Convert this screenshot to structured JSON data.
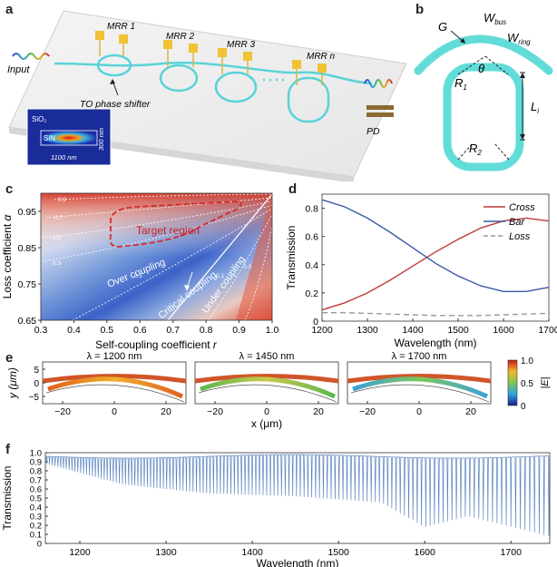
{
  "panel_labels": {
    "a": "a",
    "b": "b",
    "c": "c",
    "d": "d",
    "e": "e",
    "f": "f"
  },
  "panel_a": {
    "mrr_labels": [
      "MRR 1",
      "MRR 2",
      "MRR 3",
      "MRR n"
    ],
    "input_label": "Input",
    "shifter_label": "TO phase shifter",
    "pd_label": "PD",
    "inset": {
      "material": "SiO₂",
      "core": "SiN",
      "width": "1100 nm",
      "height": "300 nm"
    }
  },
  "panel_b": {
    "labels": {
      "G": "G",
      "W_bus": "W",
      "W_bus_sub": "bus",
      "W_ring": "W",
      "W_ring_sub": "ring",
      "theta": "θ",
      "R1": "R",
      "R1_sub": "1",
      "R2": "R",
      "R2_sub": "2",
      "Li": "L",
      "Li_sub": "i"
    }
  },
  "panel_c": {
    "xlabel": "Self-coupling coefficient ",
    "xlabel_var": "r",
    "ylabel": "Loss coefficient ",
    "ylabel_var": "α",
    "xticks": [
      "0.3",
      "0.4",
      "0.5",
      "0.6",
      "0.7",
      "0.8",
      "0.9",
      "1.0"
    ],
    "yticks": [
      "0.65",
      "0.75",
      "0.85",
      "0.95"
    ],
    "contour_labels": [
      "0.9",
      "0.7",
      "0.5",
      "0.3",
      "0.1",
      "0.1",
      "0.3"
    ],
    "target_region": "Target region",
    "over": "Over coupling",
    "critical": "Critical coupling",
    "under": "Under coupling"
  },
  "chart_data": [
    {
      "type": "line",
      "panel": "d",
      "xlabel": "Wavelength (nm)",
      "ylabel": "Transmission",
      "xlim": [
        1200,
        1700
      ],
      "ylim": [
        0,
        0.9
      ],
      "xticks": [
        "1200",
        "1300",
        "1400",
        "1500",
        "1600",
        "1700"
      ],
      "yticks": [
        "0",
        "0.2",
        "0.4",
        "0.6",
        "0.8"
      ],
      "x": [
        1200,
        1250,
        1300,
        1350,
        1400,
        1450,
        1500,
        1550,
        1600,
        1650,
        1700
      ],
      "series": [
        {
          "name": "Cross",
          "color": "#c0383a",
          "dash": false,
          "values": [
            0.08,
            0.13,
            0.2,
            0.29,
            0.39,
            0.49,
            0.58,
            0.66,
            0.71,
            0.73,
            0.71
          ]
        },
        {
          "name": "Bar",
          "color": "#3a57a7",
          "dash": false,
          "values": [
            0.86,
            0.81,
            0.73,
            0.63,
            0.52,
            0.41,
            0.32,
            0.25,
            0.21,
            0.21,
            0.24
          ]
        },
        {
          "name": "Loss",
          "color": "#999999",
          "dash": true,
          "values": [
            0.06,
            0.06,
            0.055,
            0.05,
            0.045,
            0.04,
            0.04,
            0.04,
            0.045,
            0.05,
            0.055
          ]
        }
      ]
    },
    {
      "type": "heatmap",
      "panel": "e",
      "titles": [
        "λ = 1200 nm",
        "λ = 1450 nm",
        "λ = 1700 nm"
      ],
      "xlabel": "x (μm)",
      "ylabel": "y (μm)",
      "xticks": [
        "−20",
        "0",
        "20"
      ],
      "yticks": [
        "5",
        "0",
        "−5"
      ],
      "colorbar_label": "|E|",
      "colorbar_ticks": [
        "1.0",
        "0.5",
        "0"
      ]
    },
    {
      "type": "line",
      "panel": "f",
      "xlabel": "Wavelength (nm)",
      "ylabel": "Transmission",
      "xlim": [
        1160,
        1745
      ],
      "ylim": [
        0,
        1.0
      ],
      "xticks": [
        "1200",
        "1300",
        "1400",
        "1500",
        "1600",
        "1700"
      ],
      "yticks": [
        "0",
        "0.1",
        "0.2",
        "0.3",
        "0.4",
        "0.5",
        "0.6",
        "0.7",
        "0.8",
        "0.9",
        "1.0"
      ],
      "series": [
        {
          "name": "Transmission",
          "color": "#5b84bf",
          "baseline": 0.96,
          "dip_envelope_x": [
            1160,
            1250,
            1350,
            1450,
            1550,
            1600,
            1650,
            1745
          ],
          "dip_envelope_min": [
            0.88,
            0.65,
            0.55,
            0.52,
            0.45,
            0.18,
            0.3,
            0.08
          ]
        }
      ]
    }
  ]
}
